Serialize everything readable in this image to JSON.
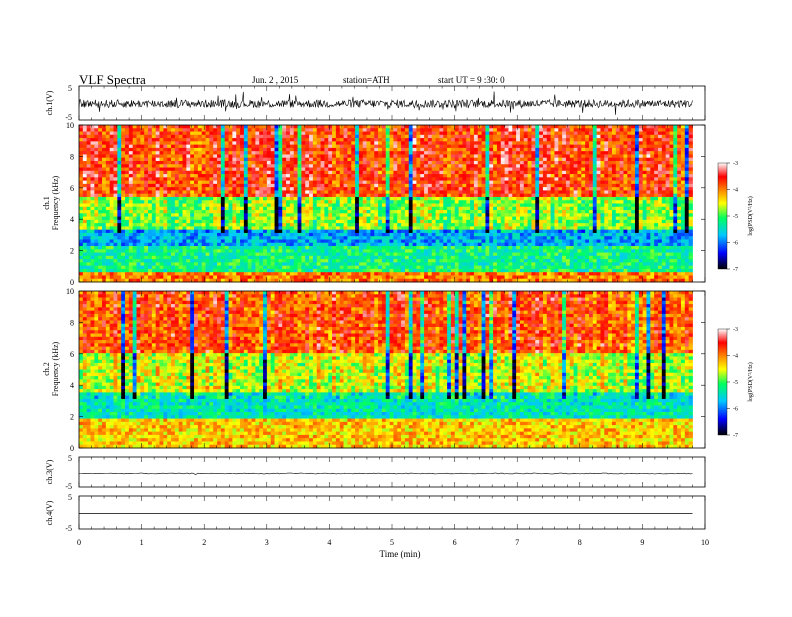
{
  "header": {
    "title": "VLF  Spectra",
    "date": "Jun. 2  , 2015",
    "station": "station=ATH",
    "start": "start  UT  =   9  :30: 0"
  },
  "chart_data": [
    {
      "type": "line",
      "name": "ch1_waveform",
      "ylabel": "ch.1(V)",
      "ylim": [
        -5,
        5
      ],
      "ticks": [
        "5",
        "-5"
      ],
      "note": "dense noisy waveform centered near -0.2 V, amplitude about ±1.5 V"
    },
    {
      "type": "heatmap",
      "name": "ch1_spectrogram",
      "ylabel_channel": "ch.1",
      "ylabel": "Frequency  (kHz)",
      "ylim": [
        0,
        10
      ],
      "yticks": [
        "0",
        "2",
        "4",
        "6",
        "8",
        "10"
      ],
      "colorbar": {
        "label": "log(PSD(V²/Hz)",
        "range": [
          -7,
          -3
        ],
        "ticks": [
          "-3",
          "-4",
          "-5",
          "-6",
          "-7"
        ]
      },
      "bands": [
        {
          "from_khz": 0,
          "to_khz": 0.6,
          "level": -4.0
        },
        {
          "from_khz": 0.6,
          "to_khz": 2.3,
          "level": -5.2
        },
        {
          "from_khz": 2.3,
          "to_khz": 3.4,
          "level": -5.8
        },
        {
          "from_khz": 3.4,
          "to_khz": 5.5,
          "level": -4.8
        },
        {
          "from_khz": 5.5,
          "to_khz": 10,
          "level": -3.7
        }
      ]
    },
    {
      "type": "heatmap",
      "name": "ch2_spectrogram",
      "ylabel_channel": "ch.2",
      "ylabel": "Frequency  (kHz)",
      "ylim": [
        0,
        10
      ],
      "yticks": [
        "0",
        "2",
        "4",
        "6",
        "8",
        "10"
      ],
      "colorbar": {
        "label": "log(PSD(V²/Hz)",
        "range": [
          -7,
          -3
        ],
        "ticks": [
          "-3",
          "-4",
          "-5",
          "-6",
          "-7"
        ]
      },
      "bands": [
        {
          "from_khz": 0,
          "to_khz": 1.8,
          "level": -4.3
        },
        {
          "from_khz": 1.8,
          "to_khz": 3.6,
          "level": -5.4
        },
        {
          "from_khz": 3.6,
          "to_khz": 6.0,
          "level": -4.6
        },
        {
          "from_khz": 6.0,
          "to_khz": 10,
          "level": -3.8
        }
      ]
    },
    {
      "type": "line",
      "name": "ch3_waveform",
      "ylabel": "ch.3(V)",
      "ylim": [
        -5,
        5
      ],
      "ticks": [
        "5",
        "-5"
      ],
      "note": "near-flat trace at about -0.5 V"
    },
    {
      "type": "line",
      "name": "ch4_waveform",
      "ylabel": "ch.4(V)",
      "ylim": [
        -5,
        5
      ],
      "ticks": [
        "5",
        "-5"
      ],
      "note": "flat trace at about -0.3 V"
    }
  ],
  "xaxis": {
    "label": "Time  (min)",
    "range": [
      0,
      10
    ],
    "ticks": [
      "0",
      "1",
      "2",
      "3",
      "4",
      "5",
      "6",
      "7",
      "8",
      "9",
      "10"
    ],
    "data_end_min": 9.8
  },
  "colors": {
    "scale": [
      "#000000",
      "#0000ff",
      "#00c8ff",
      "#00ff60",
      "#ffff00",
      "#ff8000",
      "#ff0000",
      "#ffffff"
    ]
  }
}
